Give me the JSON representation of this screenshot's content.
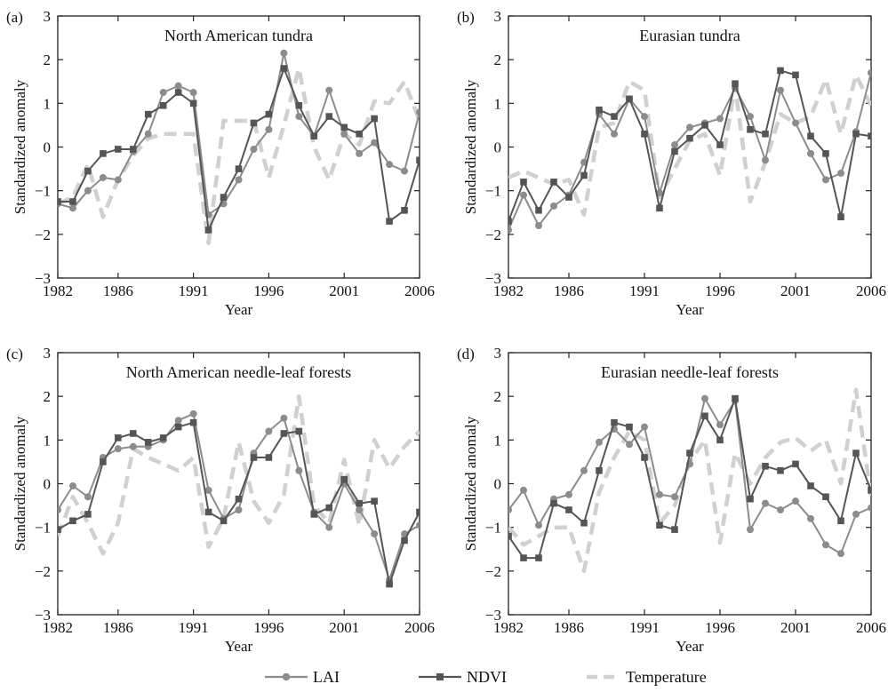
{
  "colors": {
    "lai": "#8c8c8c",
    "ndvi": "#555555",
    "temperature": "#d0d0d0",
    "axis": "#222222"
  },
  "legend": {
    "placement": "bottom-center",
    "entries": [
      {
        "label": "LAI",
        "style": "line-circle",
        "color": "#8c8c8c"
      },
      {
        "label": "NDVI",
        "style": "line-square",
        "color": "#555555"
      },
      {
        "label": "Temperature",
        "style": "dashed",
        "color": "#d0d0d0"
      }
    ]
  },
  "chart_data": [
    {
      "panel_label": "(a)",
      "type": "line",
      "title": "North American tundra",
      "xlabel": "Year",
      "ylabel": "Standardized anomaly",
      "xlim": [
        1982,
        2006
      ],
      "ylim": [
        -3,
        3
      ],
      "xticks": [
        1982,
        1986,
        1991,
        1996,
        2001,
        2006
      ],
      "yticks": [
        -3,
        -2,
        -1,
        0,
        1,
        2,
        3
      ],
      "x": [
        1982,
        1983,
        1984,
        1985,
        1986,
        1987,
        1988,
        1989,
        1990,
        1991,
        1992,
        1993,
        1994,
        1995,
        1996,
        1997,
        1998,
        1999,
        2000,
        2001,
        2002,
        2003,
        2004,
        2005,
        2006
      ],
      "series": [
        {
          "name": "LAI",
          "values": [
            -1.3,
            -1.4,
            -1.0,
            -0.7,
            -0.75,
            -0.1,
            0.3,
            1.25,
            1.4,
            1.25,
            -1.55,
            -1.3,
            -0.75,
            -0.05,
            0.4,
            2.15,
            0.7,
            0.25,
            1.3,
            0.3,
            -0.15,
            0.1,
            -0.4,
            -0.55,
            0.8
          ]
        },
        {
          "name": "NDVI",
          "values": [
            -1.25,
            -1.25,
            -0.55,
            -0.15,
            -0.05,
            -0.05,
            0.75,
            0.95,
            1.25,
            1.0,
            -1.9,
            -1.15,
            -0.5,
            0.55,
            0.75,
            1.8,
            0.95,
            0.25,
            0.7,
            0.45,
            0.3,
            0.65,
            -1.7,
            -1.45,
            -0.3
          ]
        },
        {
          "name": "Temperature",
          "values": [
            -1.3,
            -1.15,
            -0.4,
            -1.6,
            -0.75,
            -0.2,
            0.2,
            0.3,
            0.3,
            0.3,
            -2.2,
            0.6,
            0.6,
            0.6,
            -0.7,
            0.5,
            1.8,
            0.0,
            -0.75,
            0.3,
            0.05,
            1.05,
            1.0,
            1.5,
            0.6
          ]
        }
      ]
    },
    {
      "panel_label": "(b)",
      "type": "line",
      "title": "Eurasian tundra",
      "xlabel": "Year",
      "ylabel": "Standardized anomaly",
      "xlim": [
        1982,
        2006
      ],
      "ylim": [
        -3,
        3
      ],
      "xticks": [
        1982,
        1986,
        1991,
        1996,
        2001,
        2006
      ],
      "yticks": [
        -3,
        -2,
        -1,
        0,
        1,
        2,
        3
      ],
      "x": [
        1982,
        1983,
        1984,
        1985,
        1986,
        1987,
        1988,
        1989,
        1990,
        1991,
        1992,
        1993,
        1994,
        1995,
        1996,
        1997,
        1998,
        1999,
        2000,
        2001,
        2002,
        2003,
        2004,
        2005,
        2006
      ],
      "series": [
        {
          "name": "LAI",
          "values": [
            -1.9,
            -1.1,
            -1.8,
            -1.35,
            -1.1,
            -0.35,
            0.75,
            0.3,
            1.1,
            0.7,
            -1.05,
            0.05,
            0.45,
            0.55,
            0.65,
            1.35,
            0.7,
            -0.3,
            1.3,
            0.55,
            -0.15,
            -0.75,
            -0.6,
            0.35,
            1.7
          ]
        },
        {
          "name": "NDVI",
          "values": [
            -1.7,
            -0.8,
            -1.45,
            -0.8,
            -1.15,
            -0.65,
            0.85,
            0.7,
            1.1,
            0.3,
            -1.4,
            -0.1,
            0.2,
            0.5,
            0.05,
            1.45,
            0.4,
            0.3,
            1.75,
            1.65,
            0.25,
            -0.15,
            -1.6,
            0.3,
            0.25
          ]
        },
        {
          "name": "Temperature",
          "values": [
            -0.7,
            -0.55,
            -0.7,
            -0.85,
            -0.75,
            -1.55,
            0.45,
            0.55,
            1.5,
            1.3,
            -1.15,
            -0.5,
            0.15,
            0.3,
            -0.65,
            1.4,
            -1.25,
            -0.35,
            0.75,
            0.55,
            0.7,
            1.55,
            0.3,
            1.65,
            0.95
          ]
        }
      ]
    },
    {
      "panel_label": "(c)",
      "type": "line",
      "title": "North American needle-leaf forests",
      "xlabel": "Year",
      "ylabel": "Standardized anomaly",
      "xlim": [
        1982,
        2006
      ],
      "ylim": [
        -3,
        3
      ],
      "xticks": [
        1982,
        1986,
        1991,
        1996,
        2001,
        2006
      ],
      "yticks": [
        -3,
        -2,
        -1,
        0,
        1,
        2,
        3
      ],
      "x": [
        1982,
        1983,
        1984,
        1985,
        1986,
        1987,
        1988,
        1989,
        1990,
        1991,
        1992,
        1993,
        1994,
        1995,
        1996,
        1997,
        1998,
        1999,
        2000,
        2001,
        2002,
        2003,
        2004,
        2005,
        2006
      ],
      "series": [
        {
          "name": "LAI",
          "values": [
            -0.6,
            -0.05,
            -0.3,
            0.6,
            0.8,
            0.85,
            0.85,
            1.0,
            1.45,
            1.6,
            -0.15,
            -0.8,
            -0.6,
            0.7,
            1.2,
            1.5,
            0.3,
            -0.65,
            -1.0,
            0.0,
            -0.6,
            -1.15,
            -2.2,
            -1.15,
            -0.95
          ]
        },
        {
          "name": "NDVI",
          "values": [
            -1.05,
            -0.85,
            -0.7,
            0.5,
            1.05,
            1.15,
            0.95,
            1.05,
            1.3,
            1.4,
            -0.65,
            -0.85,
            -0.35,
            0.6,
            0.6,
            1.15,
            1.2,
            -0.7,
            -0.55,
            0.1,
            -0.45,
            -0.4,
            -2.3,
            -1.3,
            -0.65
          ]
        },
        {
          "name": "Temperature",
          "values": [
            -1.2,
            -0.3,
            -0.9,
            -1.6,
            -0.9,
            0.8,
            0.6,
            0.45,
            0.3,
            0.6,
            -1.45,
            -0.8,
            0.95,
            -0.4,
            -0.9,
            -0.25,
            2.0,
            -0.5,
            -0.9,
            0.55,
            -0.95,
            1.0,
            0.35,
            0.85,
            1.2
          ]
        }
      ]
    },
    {
      "panel_label": "(d)",
      "type": "line",
      "title": "Eurasian needle-leaf forests",
      "xlabel": "Year",
      "ylabel": "Standardized anomaly",
      "xlim": [
        1982,
        2006
      ],
      "ylim": [
        -3,
        3
      ],
      "xticks": [
        1982,
        1986,
        1991,
        1996,
        2001,
        2006
      ],
      "yticks": [
        -3,
        -2,
        -1,
        0,
        1,
        2,
        3
      ],
      "x": [
        1982,
        1983,
        1984,
        1985,
        1986,
        1987,
        1988,
        1989,
        1990,
        1991,
        1992,
        1993,
        1994,
        1995,
        1996,
        1997,
        1998,
        1999,
        2000,
        2001,
        2002,
        2003,
        2004,
        2005,
        2006
      ],
      "series": [
        {
          "name": "LAI",
          "values": [
            -0.6,
            -0.15,
            -0.95,
            -0.35,
            -0.25,
            0.3,
            0.95,
            1.25,
            0.9,
            1.3,
            -0.25,
            -0.3,
            0.45,
            1.95,
            1.35,
            1.9,
            -1.05,
            -0.45,
            -0.6,
            -0.4,
            -0.8,
            -1.4,
            -1.6,
            -0.7,
            -0.55
          ]
        },
        {
          "name": "NDVI",
          "values": [
            -1.2,
            -1.7,
            -1.7,
            -0.45,
            -0.6,
            -0.9,
            0.3,
            1.4,
            1.3,
            0.6,
            -0.95,
            -1.05,
            0.7,
            1.55,
            1.0,
            1.95,
            -0.35,
            0.4,
            0.3,
            0.45,
            -0.05,
            -0.3,
            -0.85,
            0.7,
            -0.15
          ]
        },
        {
          "name": "Temperature",
          "values": [
            -1.0,
            -1.4,
            -1.2,
            -1.0,
            -1.0,
            -2.0,
            -0.2,
            0.6,
            1.2,
            1.0,
            -0.9,
            -0.5,
            0.5,
            1.0,
            -1.35,
            0.7,
            0.0,
            0.6,
            0.95,
            1.05,
            0.75,
            1.0,
            0.0,
            2.15,
            -0.3
          ]
        }
      ]
    }
  ]
}
